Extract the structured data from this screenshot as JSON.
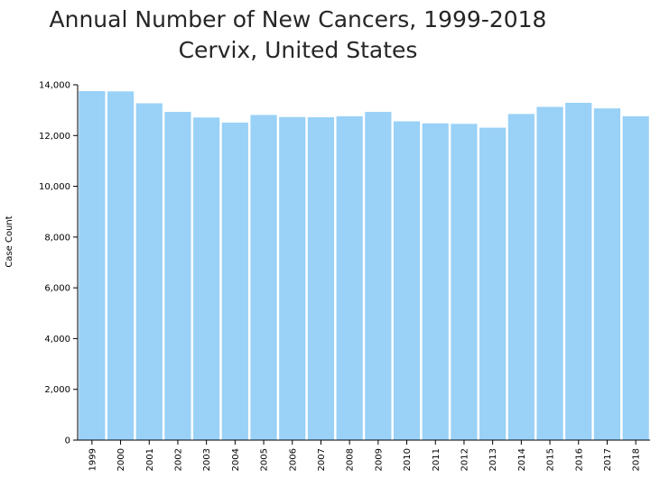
{
  "chart_data": {
    "type": "bar",
    "title": "Annual Number of New Cancers, 1999-2018",
    "subtitle": "Cervix, United States",
    "xlabel": "",
    "ylabel": "Case Count",
    "ylim": [
      0,
      14000
    ],
    "yticks": [
      0,
      2000,
      4000,
      6000,
      8000,
      10000,
      12000,
      14000
    ],
    "ytick_labels": [
      "0",
      "2,000",
      "4,000",
      "6,000",
      "8,000",
      "10,000",
      "12,000",
      "14,000"
    ],
    "categories": [
      "1999",
      "2000",
      "2001",
      "2002",
      "2003",
      "2004",
      "2005",
      "2006",
      "2007",
      "2008",
      "2009",
      "2010",
      "2011",
      "2012",
      "2013",
      "2014",
      "2015",
      "2016",
      "2017",
      "2018"
    ],
    "values": [
      13750,
      13740,
      13270,
      12930,
      12710,
      12510,
      12810,
      12730,
      12720,
      12760,
      12930,
      12560,
      12480,
      12460,
      12310,
      12850,
      13130,
      13290,
      13070,
      12760
    ],
    "grid": false,
    "legend": "none",
    "bar_color": "#99d1f7",
    "axis_color": "#000000"
  }
}
